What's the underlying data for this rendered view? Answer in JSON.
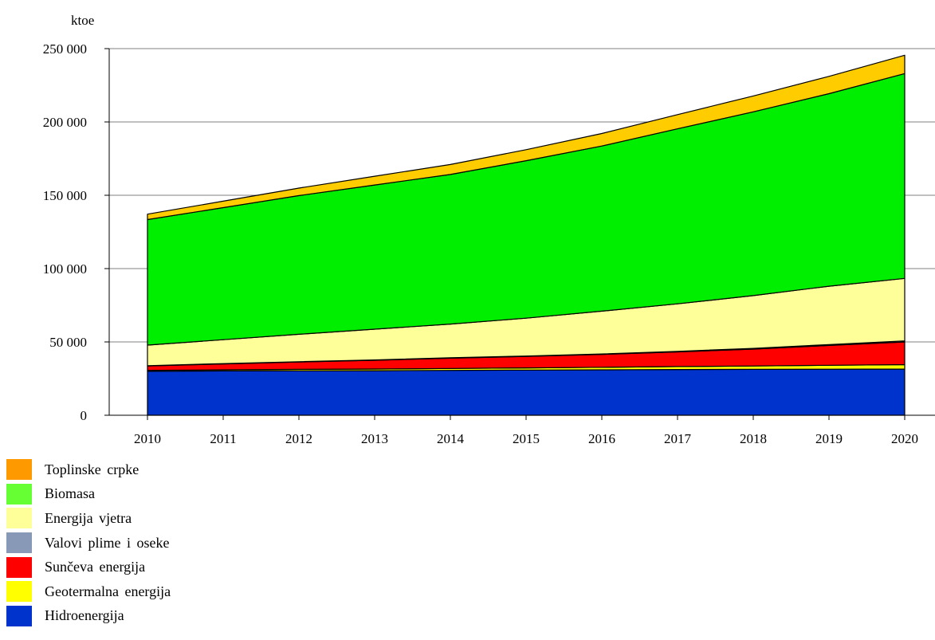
{
  "chart_data": {
    "type": "area",
    "stacked": true,
    "title": "",
    "ylabel": "ktoe",
    "xlabel": "",
    "x": [
      "2010",
      "2011",
      "2012",
      "2013",
      "2014",
      "2015",
      "2016",
      "2017",
      "2018",
      "2019",
      "2020"
    ],
    "ylim": [
      0,
      250000
    ],
    "yticks": [
      0,
      50000,
      100000,
      150000,
      200000,
      250000
    ],
    "ytick_labels": [
      "0",
      "50 000",
      "100 000",
      "150 000",
      "200 000",
      "250 000"
    ],
    "grid": "horizontal",
    "legend_position": "bottom-left",
    "series": [
      {
        "name": "Hidroenergija",
        "color": "#0033cc",
        "values": [
          30000,
          30200,
          30300,
          30400,
          30600,
          30800,
          31000,
          31200,
          31300,
          31400,
          31500
        ]
      },
      {
        "name": "Geotermalna energija",
        "color": "#ffff00",
        "values": [
          600,
          800,
          1000,
          1100,
          1300,
          1500,
          1700,
          2000,
          2300,
          2700,
          3000
        ]
      },
      {
        "name": "Sunčeva energija",
        "color": "#ff0000",
        "values": [
          3000,
          4000,
          5000,
          6000,
          7000,
          7800,
          8800,
          10000,
          11500,
          13500,
          15500
        ]
      },
      {
        "name": "Valovi plime i oseke",
        "color": "#8899b8",
        "values": [
          200,
          200,
          200,
          200,
          300,
          300,
          300,
          400,
          500,
          600,
          700
        ]
      },
      {
        "name": "Energija vjetra",
        "color": "#ffff99",
        "values": [
          14000,
          16300,
          18700,
          21000,
          23000,
          25800,
          29200,
          32400,
          36000,
          39800,
          42600
        ]
      },
      {
        "name": "Biomasa",
        "color": "#00ee00",
        "values": [
          85600,
          90100,
          94600,
          98300,
          102000,
          107400,
          112600,
          119300,
          125300,
          131300,
          139700
        ]
      },
      {
        "name": "Toplinske crpke",
        "color": "#ffcc00",
        "values": [
          3700,
          4400,
          5100,
          6000,
          6800,
          7500,
          8500,
          9700,
          10800,
          11800,
          12500
        ]
      }
    ]
  },
  "legend": {
    "items": [
      {
        "label": "Toplinske crpke",
        "color": "#ff9900"
      },
      {
        "label": "Biomasa",
        "color": "#66ff33"
      },
      {
        "label": "Energija vjetra",
        "color": "#ffff99"
      },
      {
        "label": "Valovi plime i oseke",
        "color": "#8899b8"
      },
      {
        "label": "Sunčeva energija",
        "color": "#ff0000"
      },
      {
        "label": "Geotermalna energija",
        "color": "#ffff00"
      },
      {
        "label": "Hidroenergija",
        "color": "#0033cc"
      }
    ]
  }
}
